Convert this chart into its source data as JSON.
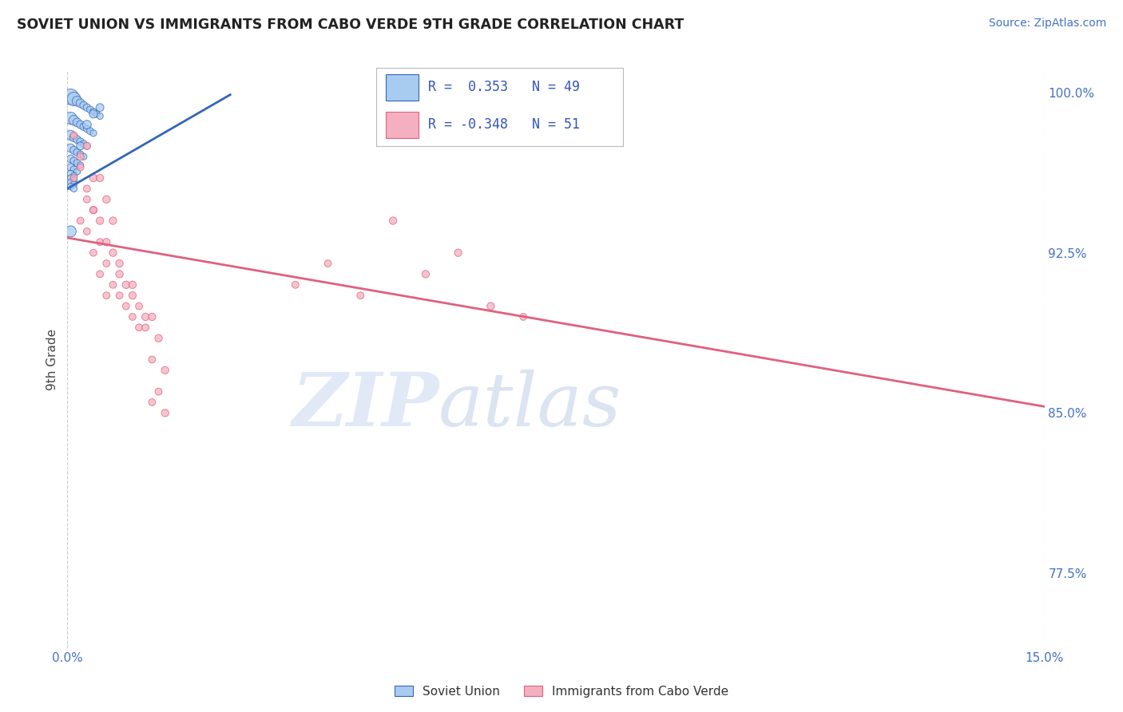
{
  "title": "SOVIET UNION VS IMMIGRANTS FROM CABO VERDE 9TH GRADE CORRELATION CHART",
  "source": "Source: ZipAtlas.com",
  "ylabel": "9th Grade",
  "xmin": 0.0,
  "xmax": 0.15,
  "ymin": 0.74,
  "ymax": 1.01,
  "yticks": [
    0.775,
    0.85,
    0.925,
    1.0
  ],
  "ytick_labels": [
    "77.5%",
    "85.0%",
    "92.5%",
    "100.0%"
  ],
  "xticks": [
    0.0,
    0.15
  ],
  "xtick_labels": [
    "0.0%",
    "15.0%"
  ],
  "legend1_R": "0.353",
  "legend1_N": "49",
  "legend2_R": "-0.348",
  "legend2_N": "51",
  "blue_color": "#A8CCF0",
  "pink_color": "#F4B0C0",
  "blue_line_color": "#3366BB",
  "pink_line_color": "#E06080",
  "watermark_zip": "ZIP",
  "watermark_atlas": "atlas",
  "legend_label1": "Soviet Union",
  "legend_label2": "Immigrants from Cabo Verde",
  "blue_line_x0": 0.0,
  "blue_line_y0": 0.955,
  "blue_line_x1": 0.025,
  "blue_line_y1": 0.999,
  "pink_line_x0": 0.0,
  "pink_line_y0": 0.932,
  "pink_line_x1": 0.15,
  "pink_line_y1": 0.853,
  "blue_scatter_x": [
    0.0005,
    0.001,
    0.0015,
    0.002,
    0.0025,
    0.003,
    0.0035,
    0.004,
    0.0045,
    0.005,
    0.0005,
    0.001,
    0.0015,
    0.002,
    0.0025,
    0.003,
    0.0035,
    0.004,
    0.0005,
    0.001,
    0.0015,
    0.002,
    0.0025,
    0.003,
    0.0005,
    0.001,
    0.0015,
    0.002,
    0.0025,
    0.0005,
    0.001,
    0.0015,
    0.002,
    0.0005,
    0.001,
    0.0015,
    0.0005,
    0.001,
    0.0005,
    0.001,
    0.0005,
    0.001,
    0.0005,
    0.001,
    0.002,
    0.003,
    0.004,
    0.005,
    0.0005
  ],
  "blue_scatter_y": [
    0.998,
    0.997,
    0.996,
    0.995,
    0.994,
    0.993,
    0.992,
    0.991,
    0.99,
    0.989,
    0.988,
    0.987,
    0.986,
    0.985,
    0.984,
    0.983,
    0.982,
    0.981,
    0.98,
    0.979,
    0.978,
    0.977,
    0.976,
    0.975,
    0.974,
    0.973,
    0.972,
    0.971,
    0.97,
    0.969,
    0.968,
    0.967,
    0.966,
    0.965,
    0.964,
    0.963,
    0.962,
    0.961,
    0.96,
    0.959,
    0.958,
    0.957,
    0.956,
    0.955,
    0.975,
    0.985,
    0.99,
    0.993,
    0.935
  ],
  "blue_scatter_sizes": [
    200,
    150,
    80,
    60,
    50,
    45,
    40,
    40,
    35,
    35,
    120,
    80,
    60,
    50,
    45,
    40,
    40,
    35,
    80,
    60,
    50,
    45,
    40,
    35,
    60,
    50,
    45,
    40,
    35,
    50,
    45,
    40,
    35,
    45,
    40,
    35,
    40,
    35,
    35,
    35,
    35,
    35,
    35,
    35,
    50,
    60,
    55,
    50,
    100
  ],
  "pink_scatter_x": [
    0.001,
    0.002,
    0.001,
    0.003,
    0.002,
    0.003,
    0.004,
    0.003,
    0.002,
    0.004,
    0.005,
    0.004,
    0.003,
    0.005,
    0.006,
    0.005,
    0.004,
    0.006,
    0.007,
    0.006,
    0.005,
    0.007,
    0.008,
    0.007,
    0.006,
    0.008,
    0.009,
    0.008,
    0.01,
    0.009,
    0.01,
    0.011,
    0.01,
    0.012,
    0.011,
    0.013,
    0.012,
    0.014,
    0.013,
    0.015,
    0.014,
    0.013,
    0.015,
    0.05,
    0.04,
    0.06,
    0.035,
    0.055,
    0.045,
    0.065,
    0.07
  ],
  "pink_scatter_y": [
    0.98,
    0.97,
    0.96,
    0.975,
    0.965,
    0.955,
    0.96,
    0.95,
    0.94,
    0.945,
    0.96,
    0.945,
    0.935,
    0.94,
    0.95,
    0.93,
    0.925,
    0.93,
    0.94,
    0.92,
    0.915,
    0.925,
    0.92,
    0.91,
    0.905,
    0.915,
    0.91,
    0.905,
    0.91,
    0.9,
    0.905,
    0.9,
    0.895,
    0.895,
    0.89,
    0.895,
    0.89,
    0.885,
    0.875,
    0.87,
    0.86,
    0.855,
    0.85,
    0.94,
    0.92,
    0.925,
    0.91,
    0.915,
    0.905,
    0.9,
    0.895
  ],
  "pink_scatter_sizes": [
    40,
    45,
    40,
    45,
    40,
    40,
    45,
    40,
    40,
    45,
    45,
    40,
    40,
    45,
    45,
    40,
    40,
    45,
    45,
    40,
    40,
    45,
    45,
    40,
    40,
    45,
    45,
    40,
    45,
    40,
    45,
    40,
    40,
    45,
    40,
    45,
    40,
    45,
    40,
    45,
    40,
    40,
    45,
    45,
    40,
    45,
    40,
    45,
    40,
    45,
    40
  ]
}
